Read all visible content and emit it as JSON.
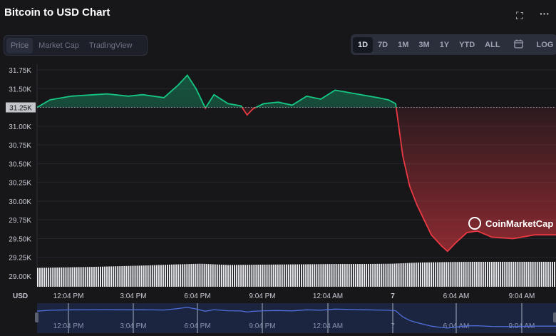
{
  "header": {
    "title": "Bitcoin to USD Chart",
    "fullscreen_icon": "expand-icon",
    "more_icon": "more-horizontal-icon"
  },
  "tabs": [
    {
      "label": "Price",
      "active": true
    },
    {
      "label": "Market Cap"
    },
    {
      "label": "TradingView"
    }
  ],
  "ranges": [
    {
      "label": "1D",
      "active": true
    },
    {
      "label": "7D"
    },
    {
      "label": "1M"
    },
    {
      "label": "3M"
    },
    {
      "label": "1Y"
    },
    {
      "label": "YTD"
    },
    {
      "label": "ALL"
    },
    {
      "label": "",
      "icon": "calendar-icon"
    },
    {
      "label": "LOG"
    }
  ],
  "watermark": "CoinMarketCap",
  "colors": {
    "up": "#16c784",
    "down": "#ea3943",
    "navigator": "#4f6fdc",
    "navigator_bg": "#1c2540",
    "bg": "#17171a"
  },
  "chart_data": {
    "type": "line",
    "currency_label": "USD",
    "ylim": [
      29.0,
      31.75
    ],
    "y_ticks": [
      "31.75K",
      "31.50K",
      "31.25K",
      "31.00K",
      "30.75K",
      "30.50K",
      "30.25K",
      "30.00K",
      "29.75K",
      "29.50K",
      "29.25K",
      "29.00K"
    ],
    "y_tick_values": [
      31.75,
      31.5,
      31.25,
      31.0,
      30.75,
      30.5,
      30.25,
      30.0,
      29.75,
      29.5,
      29.25,
      29.0
    ],
    "reference_price": 31.25,
    "reference_label": "31.25K",
    "x_ticks": [
      "12:04 PM",
      "3:04 PM",
      "6:04 PM",
      "9:04 PM",
      "12:04 AM",
      "7",
      "6:04 AM",
      "9:04 AM"
    ],
    "price_k": [
      [
        "10:37",
        31.25
      ],
      [
        "11:13",
        31.35
      ],
      [
        "12:12",
        31.4
      ],
      [
        "13:51",
        31.43
      ],
      [
        "14:50",
        31.4
      ],
      [
        "15:30",
        31.42
      ],
      [
        "16:29",
        31.38
      ],
      [
        "17:09",
        31.55
      ],
      [
        "17:34",
        31.68
      ],
      [
        "17:58",
        31.5
      ],
      [
        "18:24",
        31.24
      ],
      [
        "18:48",
        31.42
      ],
      [
        "19:27",
        31.3
      ],
      [
        "20:03",
        31.27
      ],
      [
        "20:20",
        31.15
      ],
      [
        "20:36",
        31.23
      ],
      [
        "21:06",
        31.3
      ],
      [
        "21:46",
        31.32
      ],
      [
        "22:25",
        31.28
      ],
      [
        "23:05",
        31.4
      ],
      [
        "23:44",
        31.36
      ],
      [
        "00:24",
        31.48
      ],
      [
        "01:23",
        31.43
      ],
      [
        "02:22",
        31.38
      ],
      [
        "02:52",
        31.35
      ],
      [
        "03:12",
        31.3
      ],
      [
        "03:32",
        30.6
      ],
      [
        "03:51",
        30.2
      ],
      [
        "04:11",
        29.95
      ],
      [
        "04:31",
        29.75
      ],
      [
        "04:51",
        29.55
      ],
      [
        "05:20",
        29.4
      ],
      [
        "05:36",
        29.33
      ],
      [
        "06:00",
        29.45
      ],
      [
        "06:30",
        29.58
      ],
      [
        "06:59",
        29.6
      ],
      [
        "07:39",
        29.52
      ],
      [
        "08:38",
        29.5
      ],
      [
        "09:38",
        29.55
      ],
      [
        "10:37",
        29.55
      ]
    ],
    "volume_relative": [
      0.78,
      0.8,
      0.82,
      0.85,
      0.88,
      0.92,
      0.95,
      0.9,
      0.91,
      0.92,
      0.93,
      0.94,
      0.94,
      0.95,
      1.0,
      1.02,
      1.03,
      1.03,
      1.03,
      1.03
    ]
  }
}
